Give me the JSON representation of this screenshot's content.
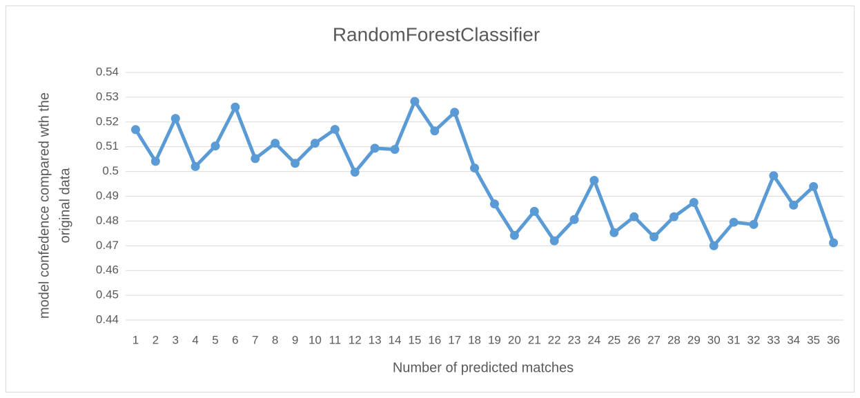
{
  "chart_data": {
    "type": "line",
    "title": "RandomForestClassifier",
    "xlabel": "Number of predicted matches",
    "ylabel": [
      "model confedence compared wth the",
      "original data"
    ],
    "categories": [
      "1",
      "2",
      "3",
      "4",
      "5",
      "6",
      "7",
      "8",
      "9",
      "10",
      "11",
      "12",
      "13",
      "14",
      "15",
      "16",
      "17",
      "18",
      "19",
      "20",
      "21",
      "22",
      "23",
      "24",
      "25",
      "26",
      "27",
      "28",
      "29",
      "30",
      "31",
      "32",
      "33",
      "34",
      "35",
      "36"
    ],
    "series": [
      {
        "name": "RandomForestClassifier",
        "color": "#5b9bd5",
        "values": [
          0.5169,
          0.5041,
          0.5214,
          0.502,
          0.5103,
          0.526,
          0.5052,
          0.5114,
          0.5033,
          0.5114,
          0.517,
          0.4997,
          0.5094,
          0.5089,
          0.5283,
          0.5164,
          0.5239,
          0.5014,
          0.4869,
          0.4742,
          0.4839,
          0.472,
          0.4806,
          0.4964,
          0.4753,
          0.4817,
          0.4736,
          0.4817,
          0.4875,
          0.47,
          0.4795,
          0.4786,
          0.4983,
          0.4864,
          0.4939,
          0.4712
        ]
      }
    ],
    "ylim": [
      0.44,
      0.54
    ],
    "yticks": [
      0.44,
      0.45,
      0.46,
      0.47,
      0.48,
      0.49,
      0.5,
      0.51,
      0.52,
      0.53,
      0.54
    ],
    "grid": true
  }
}
